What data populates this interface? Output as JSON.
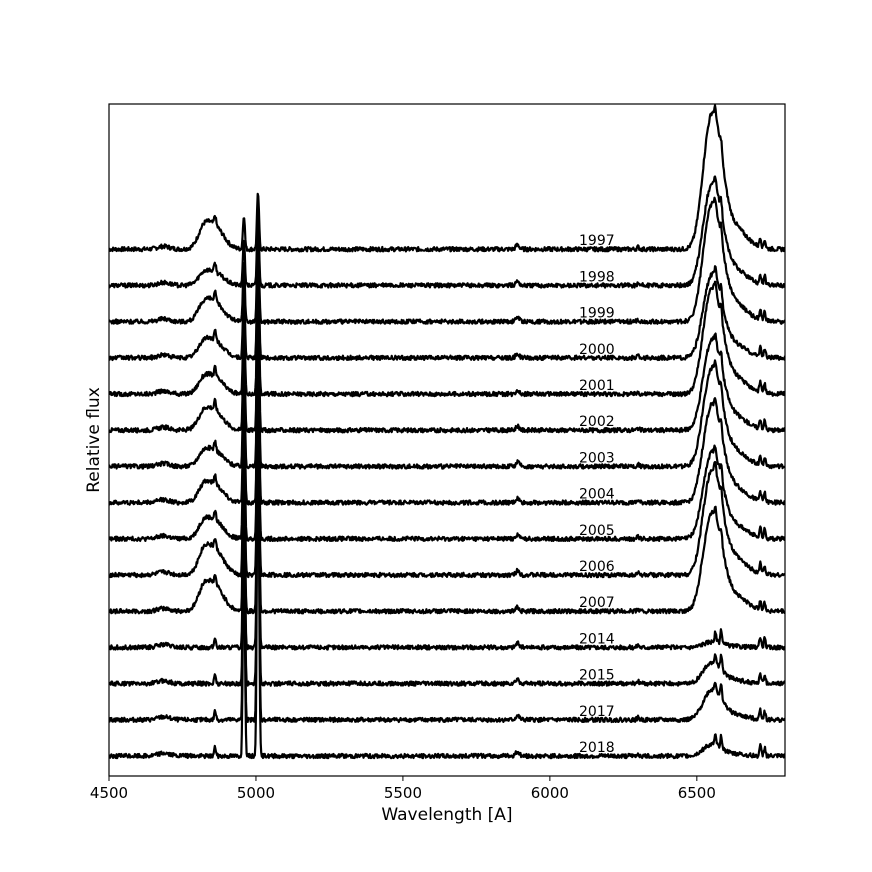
{
  "chart_data": {
    "type": "line",
    "xlabel": "Wavelength [A]",
    "ylabel": "Relative flux",
    "xlim": [
      4500,
      6800
    ],
    "x_ticks": [
      4500,
      5000,
      5500,
      6000,
      6500
    ],
    "x_tick_labels": [
      "4500",
      "5000",
      "5500",
      "6000",
      "6500"
    ],
    "y_ticks": [],
    "grid": false,
    "legend": "none",
    "line_color": "#000000",
    "series": [
      {
        "name": "1997",
        "baseline": 14.0,
        "hbeta_broad": 0.9,
        "halpha_broad": 3.6,
        "oiii": 2.5
      },
      {
        "name": "1998",
        "baseline": 13.0,
        "hbeta_broad": 0.5,
        "halpha_broad": 2.7,
        "oiii": 3.5
      },
      {
        "name": "1999",
        "baseline": 12.0,
        "hbeta_broad": 0.75,
        "halpha_broad": 3.1,
        "oiii": 4.5
      },
      {
        "name": "2000",
        "baseline": 11.0,
        "hbeta_broad": 0.65,
        "halpha_broad": 2.2,
        "oiii": 5.5
      },
      {
        "name": "2001",
        "baseline": 10.0,
        "hbeta_broad": 0.65,
        "halpha_broad": 2.8,
        "oiii": 6.5
      },
      {
        "name": "2002",
        "baseline": 9.0,
        "hbeta_broad": 0.75,
        "halpha_broad": 2.4,
        "oiii": 7.5
      },
      {
        "name": "2003",
        "baseline": 8.0,
        "hbeta_broad": 0.6,
        "halpha_broad": 2.6,
        "oiii": 8.5
      },
      {
        "name": "2004",
        "baseline": 7.0,
        "hbeta_broad": 0.7,
        "halpha_broad": 2.6,
        "oiii": 9.5
      },
      {
        "name": "2005",
        "baseline": 6.0,
        "hbeta_broad": 0.7,
        "halpha_broad": 2.3,
        "oiii": 10.5
      },
      {
        "name": "2006",
        "baseline": 5.0,
        "hbeta_broad": 1.0,
        "halpha_broad": 2.8,
        "oiii": 11.5
      },
      {
        "name": "2007",
        "baseline": 4.0,
        "hbeta_broad": 1.0,
        "halpha_broad": 2.6,
        "oiii": 12.5
      },
      {
        "name": "2014",
        "baseline": 3.0,
        "hbeta_broad": 0.0,
        "halpha_broad": 0.15,
        "oiii": 13.5
      },
      {
        "name": "2015",
        "baseline": 2.0,
        "hbeta_broad": 0.0,
        "halpha_broad": 0.55,
        "oiii": 14.5
      },
      {
        "name": "2017",
        "baseline": 1.0,
        "hbeta_broad": 0.0,
        "halpha_broad": 0.8,
        "oiii": 15.5
      },
      {
        "name": "2018",
        "baseline": 0.0,
        "hbeta_broad": 0.0,
        "halpha_broad": 0.3,
        "oiii": 16.5
      }
    ],
    "lines_angstrom": {
      "hbeta": 4861,
      "oiii_4959": 4959,
      "oiii_5007": 5007,
      "halpha": 6563,
      "nii_6583": 6583,
      "sii_6716": 6716,
      "sii_6731": 6731
    }
  }
}
